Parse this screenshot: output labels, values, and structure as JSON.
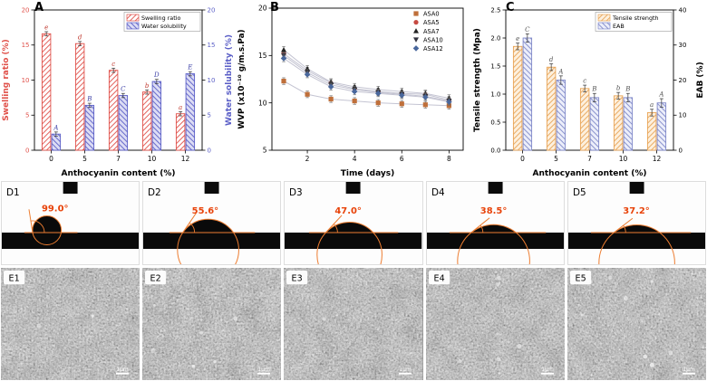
{
  "figure_labels": {
    "A": "A",
    "B": "B",
    "C": "C"
  },
  "chart_data": [
    {
      "panel": "A",
      "type": "bar",
      "xlabel": "Anthocyanin content (%)",
      "categories": [
        "0",
        "5",
        "7",
        "10",
        "12"
      ],
      "left_axis": {
        "label": "Swelling ratio (%)",
        "color": "#e0514a",
        "ticks": [
          0,
          5,
          10,
          15,
          20
        ],
        "max": 20
      },
      "right_axis": {
        "label": "Water solubility (%)",
        "color": "#5b5fc7",
        "ticks": [
          0,
          5,
          10,
          15,
          20
        ],
        "max": 20
      },
      "series": [
        {
          "name": "Swelling ratio",
          "axis": "left",
          "values": [
            16.6,
            15.2,
            11.4,
            8.3,
            5.2
          ],
          "letters": [
            "e",
            "d",
            "c",
            "b",
            "a"
          ],
          "err": 0.3,
          "style": {
            "fill": "#ffffff",
            "edge": "#e0514a",
            "hatch_angle": 45,
            "letter_color": "#c0392f"
          }
        },
        {
          "name": "Water solubility",
          "axis": "right",
          "values": [
            2.3,
            6.4,
            7.8,
            9.8,
            10.9
          ],
          "letters": [
            "A",
            "B",
            "C",
            "D",
            "E"
          ],
          "err": 0.3,
          "style": {
            "fill": "#dcdcf4",
            "edge": "#5b5fc7",
            "hatch_angle": -45,
            "letter_color": "#3f43a8"
          }
        }
      ],
      "legend_framed": true
    },
    {
      "panel": "B",
      "type": "line",
      "xlabel": "Time (days)",
      "ylabel": "WVP (x10⁻¹⁰ g/m.s.Pa)",
      "x_ticks": [
        2,
        4,
        6,
        8
      ],
      "y_ticks": [
        5,
        10,
        15,
        20
      ],
      "x_range": [
        0.5,
        8.6
      ],
      "y_range": [
        5,
        20
      ],
      "x": [
        1,
        2,
        3,
        4,
        5,
        6,
        7,
        8
      ],
      "err": 0.35,
      "series": [
        {
          "name": "ASA0",
          "marker": "square",
          "color": "#bf6f3a",
          "values": [
            12.3,
            10.9,
            10.4,
            10.2,
            10.0,
            9.9,
            9.8,
            9.7
          ]
        },
        {
          "name": "ASA5",
          "marker": "circle",
          "color": "#c64a42",
          "values": [
            15.2,
            13.4,
            12.1,
            11.5,
            11.2,
            11.0,
            10.9,
            10.3
          ]
        },
        {
          "name": "ASA7",
          "marker": "triangle-up",
          "color": "#222222",
          "values": [
            15.6,
            13.6,
            12.2,
            11.7,
            11.4,
            11.2,
            11.0,
            10.5
          ]
        },
        {
          "name": "ASA10",
          "marker": "triangle-down",
          "color": "#33333f",
          "values": [
            15.0,
            13.2,
            11.9,
            11.4,
            11.1,
            10.9,
            10.7,
            10.2
          ]
        },
        {
          "name": "ASA12",
          "marker": "diamond",
          "color": "#49679c",
          "values": [
            14.7,
            13.0,
            11.7,
            11.2,
            11.0,
            10.8,
            10.6,
            10.1
          ]
        }
      ]
    },
    {
      "panel": "C",
      "type": "bar",
      "xlabel": "Anthocyanin content (%)",
      "categories": [
        "0",
        "5",
        "7",
        "10",
        "12"
      ],
      "left_axis": {
        "label": "Tensile strength (Mpa)",
        "color": "#000000",
        "ticks": [
          "0.0",
          "0.5",
          "1.0",
          "1.5",
          "2.0",
          "2.5"
        ],
        "max": 2.5
      },
      "right_axis": {
        "label": "EAB (%)",
        "color": "#000000",
        "ticks": [
          0,
          10,
          20,
          30,
          40
        ],
        "max": 40
      },
      "series": [
        {
          "name": "Tensile strength",
          "axis": "left",
          "values": [
            1.85,
            1.48,
            1.1,
            0.97,
            0.67
          ],
          "letters": [
            "e",
            "d",
            "c",
            "b",
            "a"
          ],
          "err": 0.06,
          "style": {
            "fill": "#fdf0de",
            "edge": "#e8a558",
            "hatch_angle": 45,
            "letter_color": "#555555"
          }
        },
        {
          "name": "EAB",
          "axis": "right",
          "values": [
            32,
            20,
            15,
            15,
            13.5
          ],
          "letters": [
            "C",
            "A",
            "B",
            "B",
            "A"
          ],
          "err": 1.2,
          "style": {
            "fill": "#eceefa",
            "edge": "#8089c9",
            "hatch_angle": -45,
            "letter_color": "#555555"
          }
        }
      ],
      "legend_framed": true
    }
  ],
  "contact_angle_panels": {
    "items": [
      {
        "label": "D1",
        "angle": 99.0,
        "angle_label": "99.0°"
      },
      {
        "label": "D2",
        "angle": 55.6,
        "angle_label": "55.6°"
      },
      {
        "label": "D3",
        "angle": 47.0,
        "angle_label": "47.0°"
      },
      {
        "label": "D4",
        "angle": 38.5,
        "angle_label": "38.5°"
      },
      {
        "label": "D5",
        "angle": 37.2,
        "angle_label": "37.2°"
      }
    ]
  },
  "sem_panels": {
    "items": [
      {
        "label": "E1",
        "scale_label": "1μm"
      },
      {
        "label": "E2",
        "scale_label": "1μm"
      },
      {
        "label": "E3",
        "scale_label": "1μm"
      },
      {
        "label": "E4",
        "scale_label": "1μm"
      },
      {
        "label": "E5",
        "scale_label": "1μm"
      }
    ]
  }
}
